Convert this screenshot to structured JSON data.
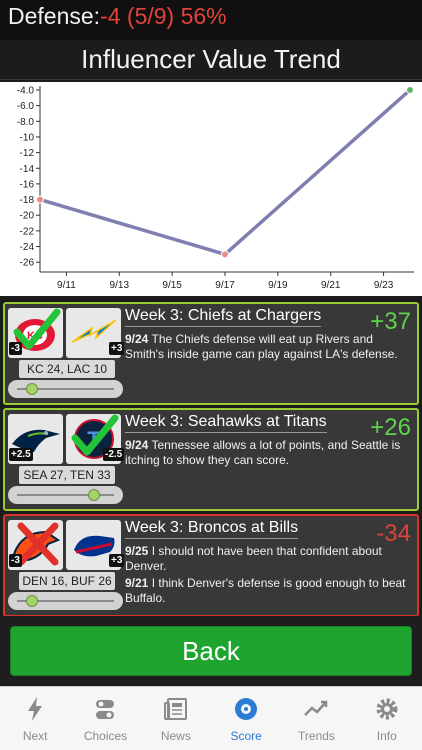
{
  "header": {
    "defense_label": "Defense:",
    "defense_value": "-4 (5/9) 56%"
  },
  "trend": {
    "title": "Influencer Value Trend"
  },
  "chart_data": {
    "type": "line",
    "x": [
      "9/10",
      "9/17",
      "9/24"
    ],
    "series": [
      {
        "values": [
          -18,
          -25,
          -4
        ]
      }
    ],
    "x_ticks": [
      "9/11",
      "9/13",
      "9/15",
      "9/17",
      "9/19",
      "9/21",
      "9/23"
    ],
    "y_ticks": [
      "-4.0",
      "-6.0",
      "-8.0",
      "-10",
      "-12",
      "-14",
      "-16",
      "-18",
      "-20",
      "-22",
      "-24",
      "-26"
    ],
    "ylim": [
      -27,
      -4
    ],
    "grid": false,
    "line_color": "#7f7fb2",
    "point_colors": [
      "#e88a8a",
      "#e88a8a",
      "#5cb85c"
    ]
  },
  "cards": [
    {
      "status": "win",
      "logo_a": "chiefs-logo",
      "logo_b": "chargers-logo",
      "mark": "check",
      "spread_a": "-3",
      "spread_b": "+3",
      "score": "KC 24, LAC 10",
      "slider_level": 0.2,
      "title": "Week 3: Chiefs at Chargers",
      "delta": "+37",
      "notes": [
        {
          "date": "9/24",
          "text": "The Chiefs defense will eat up Rivers and Smith's inside game can play against LA's defense."
        }
      ]
    },
    {
      "status": "win",
      "logo_a": "seahawks-logo",
      "logo_b": "titans-logo",
      "mark": "check",
      "spread_a": "+2.5",
      "spread_b": "-2.5",
      "score": "SEA 27, TEN 33",
      "slider_level": 0.75,
      "title": "Week 3: Seahawks at Titans",
      "delta": "+26",
      "notes": [
        {
          "date": "9/24",
          "text": "Tennessee allows a lot of points, and Seattle is itching to show they can score."
        }
      ]
    },
    {
      "status": "loss",
      "logo_a": "broncos-logo",
      "logo_b": "bills-logo",
      "mark": "cross",
      "spread_a": "-3",
      "spread_b": "+3",
      "score": "DEN 16, BUF 26",
      "slider_level": 0.2,
      "title": "Week 3: Broncos at Bills",
      "delta": "-34",
      "notes": [
        {
          "date": "9/25",
          "text": "I should not have been that confident about Denver."
        },
        {
          "date": "9/21",
          "text": "I think Denver's defense is good enough to beat Buffalo."
        }
      ]
    }
  ],
  "back_button": {
    "label": "Back",
    "color": "#1fa52f"
  },
  "tabs": [
    {
      "label": "Next",
      "icon": "lightning-icon",
      "active": false
    },
    {
      "label": "Choices",
      "icon": "toggles-icon",
      "active": false
    },
    {
      "label": "News",
      "icon": "newspaper-icon",
      "active": false
    },
    {
      "label": "Score",
      "icon": "target-icon",
      "active": true
    },
    {
      "label": "Trends",
      "icon": "trend-line-icon",
      "active": false
    },
    {
      "label": "Info",
      "icon": "gear-icon",
      "active": false
    }
  ]
}
